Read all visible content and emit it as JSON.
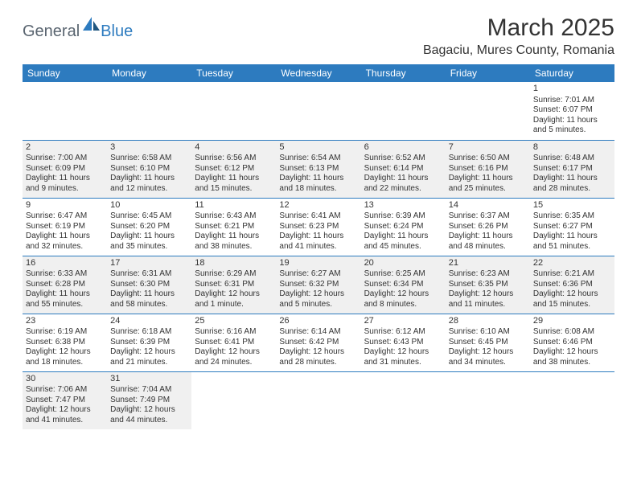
{
  "logo": {
    "general": "General",
    "blue": "Blue"
  },
  "title": "March 2025",
  "location": "Bagaciu, Mures County, Romania",
  "colors": {
    "header_bg": "#2d7bbf",
    "header_fg": "#ffffff",
    "row_alt_bg": "#f0f0f0",
    "border": "#2d7bbf",
    "text": "#333333",
    "logo_gray": "#5a6570",
    "logo_blue": "#2d7bbf"
  },
  "weekdays": [
    "Sunday",
    "Monday",
    "Tuesday",
    "Wednesday",
    "Thursday",
    "Friday",
    "Saturday"
  ],
  "weeks": [
    [
      null,
      null,
      null,
      null,
      null,
      null,
      {
        "n": "1",
        "sr": "7:01 AM",
        "ss": "6:07 PM",
        "dl": "11 hours and 5 minutes."
      }
    ],
    [
      {
        "n": "2",
        "sr": "7:00 AM",
        "ss": "6:09 PM",
        "dl": "11 hours and 9 minutes."
      },
      {
        "n": "3",
        "sr": "6:58 AM",
        "ss": "6:10 PM",
        "dl": "11 hours and 12 minutes."
      },
      {
        "n": "4",
        "sr": "6:56 AM",
        "ss": "6:12 PM",
        "dl": "11 hours and 15 minutes."
      },
      {
        "n": "5",
        "sr": "6:54 AM",
        "ss": "6:13 PM",
        "dl": "11 hours and 18 minutes."
      },
      {
        "n": "6",
        "sr": "6:52 AM",
        "ss": "6:14 PM",
        "dl": "11 hours and 22 minutes."
      },
      {
        "n": "7",
        "sr": "6:50 AM",
        "ss": "6:16 PM",
        "dl": "11 hours and 25 minutes."
      },
      {
        "n": "8",
        "sr": "6:48 AM",
        "ss": "6:17 PM",
        "dl": "11 hours and 28 minutes."
      }
    ],
    [
      {
        "n": "9",
        "sr": "6:47 AM",
        "ss": "6:19 PM",
        "dl": "11 hours and 32 minutes."
      },
      {
        "n": "10",
        "sr": "6:45 AM",
        "ss": "6:20 PM",
        "dl": "11 hours and 35 minutes."
      },
      {
        "n": "11",
        "sr": "6:43 AM",
        "ss": "6:21 PM",
        "dl": "11 hours and 38 minutes."
      },
      {
        "n": "12",
        "sr": "6:41 AM",
        "ss": "6:23 PM",
        "dl": "11 hours and 41 minutes."
      },
      {
        "n": "13",
        "sr": "6:39 AM",
        "ss": "6:24 PM",
        "dl": "11 hours and 45 minutes."
      },
      {
        "n": "14",
        "sr": "6:37 AM",
        "ss": "6:26 PM",
        "dl": "11 hours and 48 minutes."
      },
      {
        "n": "15",
        "sr": "6:35 AM",
        "ss": "6:27 PM",
        "dl": "11 hours and 51 minutes."
      }
    ],
    [
      {
        "n": "16",
        "sr": "6:33 AM",
        "ss": "6:28 PM",
        "dl": "11 hours and 55 minutes."
      },
      {
        "n": "17",
        "sr": "6:31 AM",
        "ss": "6:30 PM",
        "dl": "11 hours and 58 minutes."
      },
      {
        "n": "18",
        "sr": "6:29 AM",
        "ss": "6:31 PM",
        "dl": "12 hours and 1 minute."
      },
      {
        "n": "19",
        "sr": "6:27 AM",
        "ss": "6:32 PM",
        "dl": "12 hours and 5 minutes."
      },
      {
        "n": "20",
        "sr": "6:25 AM",
        "ss": "6:34 PM",
        "dl": "12 hours and 8 minutes."
      },
      {
        "n": "21",
        "sr": "6:23 AM",
        "ss": "6:35 PM",
        "dl": "12 hours and 11 minutes."
      },
      {
        "n": "22",
        "sr": "6:21 AM",
        "ss": "6:36 PM",
        "dl": "12 hours and 15 minutes."
      }
    ],
    [
      {
        "n": "23",
        "sr": "6:19 AM",
        "ss": "6:38 PM",
        "dl": "12 hours and 18 minutes."
      },
      {
        "n": "24",
        "sr": "6:18 AM",
        "ss": "6:39 PM",
        "dl": "12 hours and 21 minutes."
      },
      {
        "n": "25",
        "sr": "6:16 AM",
        "ss": "6:41 PM",
        "dl": "12 hours and 24 minutes."
      },
      {
        "n": "26",
        "sr": "6:14 AM",
        "ss": "6:42 PM",
        "dl": "12 hours and 28 minutes."
      },
      {
        "n": "27",
        "sr": "6:12 AM",
        "ss": "6:43 PM",
        "dl": "12 hours and 31 minutes."
      },
      {
        "n": "28",
        "sr": "6:10 AM",
        "ss": "6:45 PM",
        "dl": "12 hours and 34 minutes."
      },
      {
        "n": "29",
        "sr": "6:08 AM",
        "ss": "6:46 PM",
        "dl": "12 hours and 38 minutes."
      }
    ],
    [
      {
        "n": "30",
        "sr": "7:06 AM",
        "ss": "7:47 PM",
        "dl": "12 hours and 41 minutes."
      },
      {
        "n": "31",
        "sr": "7:04 AM",
        "ss": "7:49 PM",
        "dl": "12 hours and 44 minutes."
      },
      null,
      null,
      null,
      null,
      null
    ]
  ],
  "labels": {
    "sunrise": "Sunrise: ",
    "sunset": "Sunset: ",
    "daylight": "Daylight: "
  }
}
